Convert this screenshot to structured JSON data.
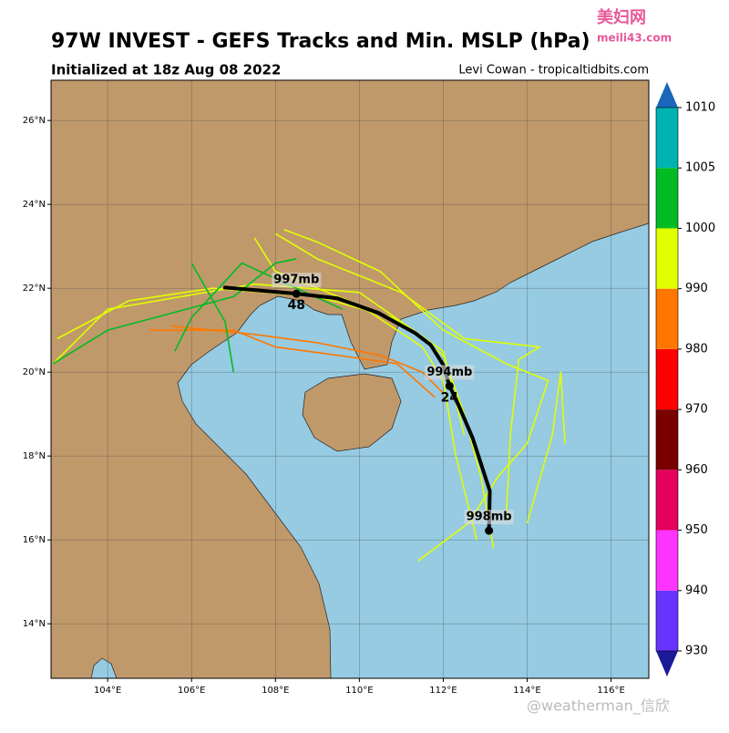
{
  "title": "97W INVEST - GEFS Tracks and Min. MSLP (hPa)",
  "subtitle": "Initialized at 18z Aug 08 2022",
  "credit": "Levi Cowan - tropicaltidbits.com",
  "watermarks": {
    "site_name": "美妇网",
    "site_url": "meili43.com",
    "author": "@weatherman_信欣"
  },
  "map": {
    "lonlim": [
      102.65,
      116.9
    ],
    "latlim": [
      12.7,
      26.96
    ],
    "lonticks": [
      {
        "value": 104,
        "label": "104°E"
      },
      {
        "value": 106,
        "label": "106°E"
      },
      {
        "value": 108,
        "label": "108°E"
      },
      {
        "value": 110,
        "label": "110°E"
      },
      {
        "value": 112,
        "label": "112°E"
      },
      {
        "value": 114,
        "label": "114°E"
      },
      {
        "value": 116,
        "label": "116°E"
      }
    ],
    "latticks": [
      {
        "value": 14,
        "label": "14°N"
      },
      {
        "value": 16,
        "label": "16°N"
      },
      {
        "value": 18,
        "label": "18°N"
      },
      {
        "value": 20,
        "label": "20°N"
      },
      {
        "value": 22,
        "label": "22°N"
      },
      {
        "value": 24,
        "label": "24°N"
      },
      {
        "value": 26,
        "label": "26°N"
      }
    ]
  },
  "colorbar": {
    "ticks": [
      930,
      940,
      950,
      960,
      970,
      980,
      990,
      1000,
      1005,
      1010
    ],
    "colors": [
      "#6633ff",
      "#ff33ff",
      "#e6005c",
      "#7a0000",
      "#ff0000",
      "#ff7700",
      "#e0ff00",
      "#00bb22",
      "#00b3b3"
    ],
    "under_color": "#1a1a99",
    "over_color": "#1a66bb"
  },
  "ensemble_tracks": [
    {
      "color": "#e0ff00",
      "lon": [
        113.2,
        112.9,
        112.5,
        112.0,
        110.8,
        109.0,
        106.5,
        104.5,
        102.8
      ],
      "lat": [
        15.8,
        17.5,
        19.0,
        20.4,
        21.3,
        21.8,
        22.0,
        21.7,
        20.8
      ]
    },
    {
      "color": "#e0ff00",
      "lon": [
        112.8,
        112.3,
        112.0,
        111.5,
        110.0,
        108.0,
        107.5
      ],
      "lat": [
        16.0,
        18.0,
        19.8,
        20.6,
        21.6,
        22.4,
        23.2
      ]
    },
    {
      "color": "#e0ff00",
      "lon": [
        113.5,
        113.6,
        113.8,
        114.3,
        112.5,
        111.0,
        109.0,
        108.0
      ],
      "lat": [
        16.5,
        18.5,
        20.3,
        20.6,
        20.8,
        21.9,
        22.7,
        23.3
      ]
    },
    {
      "color": "#e0ff00",
      "lon": [
        111.4,
        112.6,
        113.3,
        114.0,
        114.5,
        113.5,
        112.0,
        110.5,
        109.0,
        108.2
      ],
      "lat": [
        15.5,
        16.4,
        17.5,
        18.3,
        19.8,
        20.2,
        21.0,
        22.4,
        23.1,
        23.4
      ]
    },
    {
      "color": "#e0ff00",
      "lon": [
        114.0,
        114.6,
        114.8,
        114.9
      ],
      "lat": [
        16.4,
        18.5,
        20.0,
        18.3
      ]
    },
    {
      "color": "#e0ff00",
      "lon": [
        112.5,
        112.0,
        110.0,
        107.5,
        104.0,
        102.7
      ],
      "lat": [
        18.5,
        20.5,
        21.9,
        22.1,
        21.5,
        20.2
      ]
    },
    {
      "color": "#ff7700",
      "lon": [
        112.0,
        111.5,
        110.5,
        109.0,
        107.5,
        105.5
      ],
      "lat": [
        19.5,
        20.0,
        20.4,
        20.7,
        20.9,
        21.1
      ]
    },
    {
      "color": "#ff7700",
      "lon": [
        111.8,
        110.9,
        109.5,
        108.0,
        107.0,
        105.0
      ],
      "lat": [
        19.4,
        20.2,
        20.4,
        20.6,
        21.0,
        21.0
      ]
    },
    {
      "color": "#00bb22",
      "lon": [
        109.6,
        108.5,
        107.2,
        106.0,
        105.6
      ],
      "lat": [
        21.5,
        22.0,
        22.6,
        21.3,
        20.5
      ]
    },
    {
      "color": "#00bb22",
      "lon": [
        106.0,
        106.8,
        107.0
      ],
      "lat": [
        22.6,
        21.2,
        20.0
      ]
    },
    {
      "color": "#00bb22",
      "lon": [
        102.7,
        104.0,
        105.5,
        107.0,
        108.0,
        108.5
      ],
      "lat": [
        20.2,
        21.0,
        21.4,
        21.8,
        22.6,
        22.7
      ]
    }
  ],
  "mean_track": {
    "color": "#000000",
    "lon": [
      113.09,
      113.11,
      112.7,
      112.37,
      112.15,
      112.0,
      111.7,
      111.33,
      110.46,
      109.48,
      108.5,
      106.76
    ],
    "lat": [
      16.22,
      17.17,
      18.43,
      19.2,
      19.67,
      20.17,
      20.65,
      20.93,
      21.41,
      21.76,
      21.87,
      22.02
    ]
  },
  "mean_points": [
    {
      "lon": 113.09,
      "lat": 16.22,
      "pressure": "998mb"
    },
    {
      "lon": 112.15,
      "lat": 19.67,
      "pressure": "994mb",
      "hour": 24
    },
    {
      "lon": 108.5,
      "lat": 21.87,
      "pressure": "997mb",
      "hour": 48
    }
  ]
}
